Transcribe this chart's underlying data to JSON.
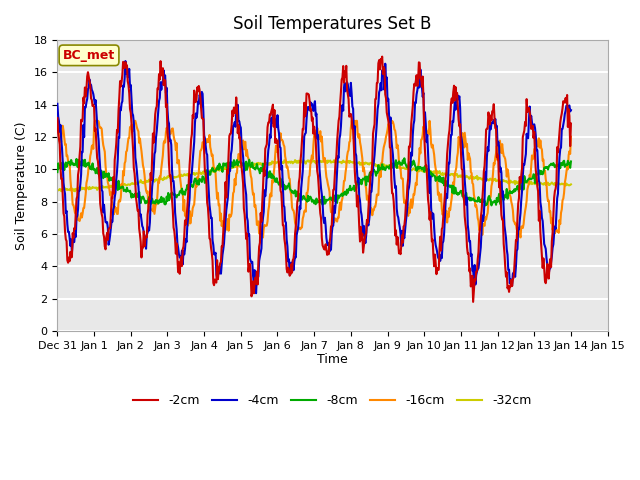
{
  "title": "Soil Temperatures Set B",
  "xlabel": "Time",
  "ylabel": "Soil Temperature (C)",
  "ylim": [
    0,
    18
  ],
  "xlim": [
    0,
    336
  ],
  "yticks": [
    0,
    2,
    4,
    6,
    8,
    10,
    12,
    14,
    16,
    18
  ],
  "xtick_labels": [
    "Dec 31",
    "Jan 1",
    "Jan 2",
    "Jan 3",
    "Jan 4",
    "Jan 5",
    "Jan 6",
    "Jan 7",
    "Jan 8",
    "Jan 9",
    "Jan 10",
    "Jan 11",
    "Jan 12",
    "Jan 13",
    "Jan 14",
    "Jan 15"
  ],
  "xtick_positions": [
    0,
    24,
    48,
    72,
    96,
    120,
    144,
    168,
    192,
    216,
    240,
    264,
    288,
    312,
    336,
    360
  ],
  "series_colors": [
    "#cc0000",
    "#0000cc",
    "#00aa00",
    "#ff8800",
    "#cccc00"
  ],
  "series_labels": [
    "-2cm",
    "-4cm",
    "-8cm",
    "-16cm",
    "-32cm"
  ],
  "legend_label": "BC_met",
  "background_color": "#e8e8e8",
  "grid_color": "#ffffff",
  "line_width": 1.5
}
